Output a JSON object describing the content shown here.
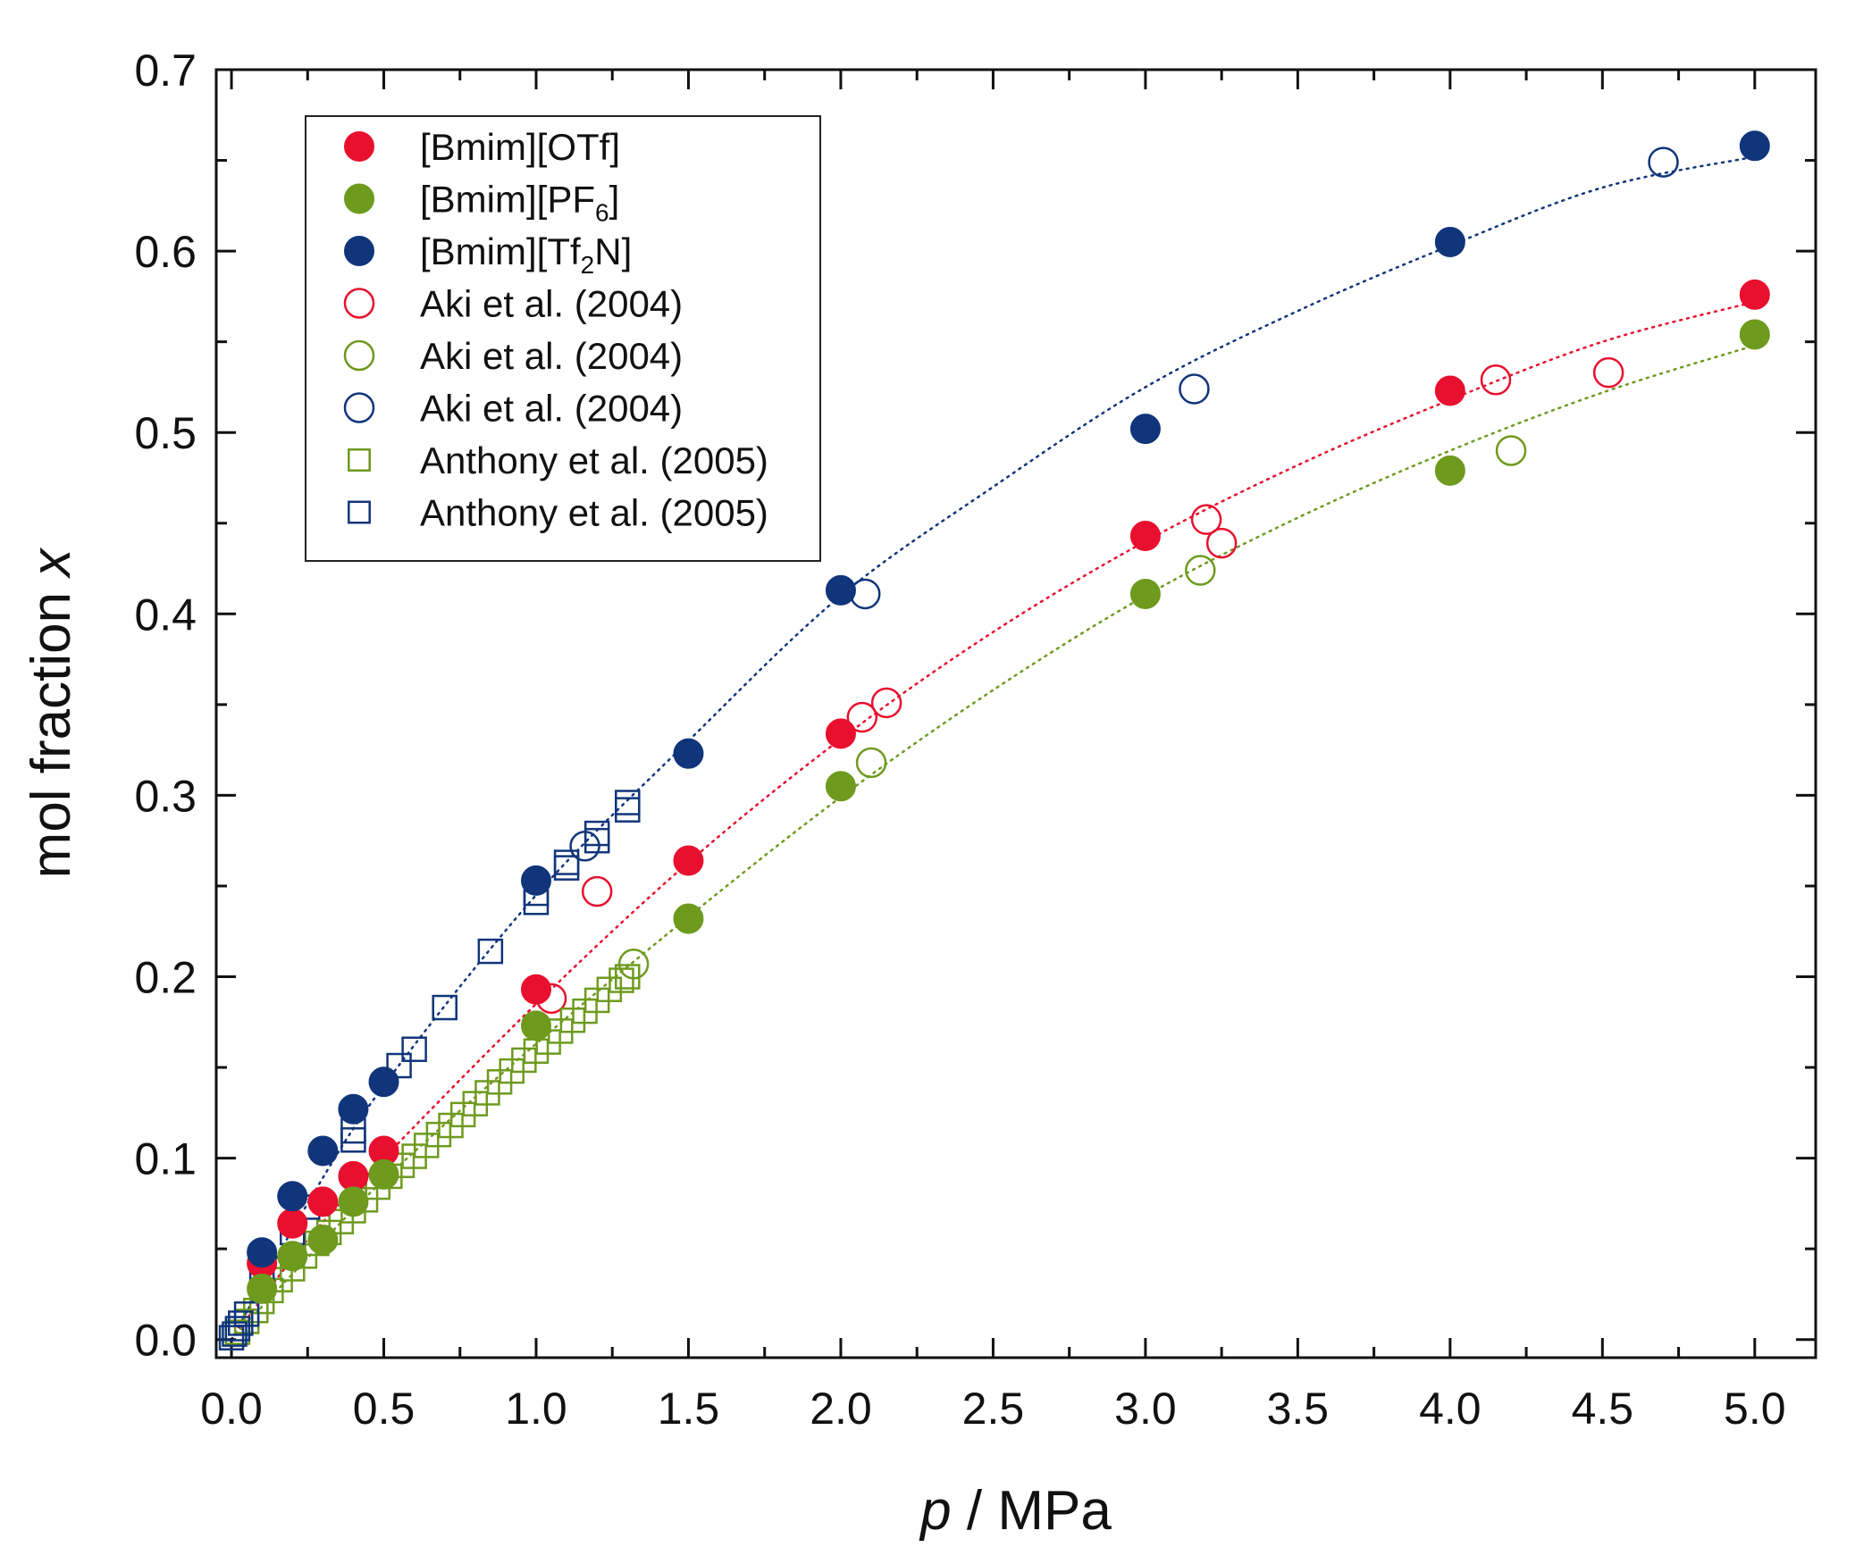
{
  "chart_data": {
    "type": "scatter",
    "title": "",
    "xlabel": "p / MPa",
    "xlabel_var": "p",
    "xlabel_unit": " / MPa",
    "ylabel": "mol fraction x",
    "ylabel_text": "mol fraction ",
    "ylabel_var": "x",
    "xlim": [
      -0.05,
      5.2
    ],
    "ylim": [
      -0.01,
      0.7
    ],
    "x_ticks": [
      0.0,
      0.5,
      1.0,
      1.5,
      2.0,
      2.5,
      3.0,
      3.5,
      4.0,
      4.5,
      5.0
    ],
    "x_tick_labels": [
      "0.0",
      "0.5",
      "1.0",
      "1.5",
      "2.0",
      "2.5",
      "3.0",
      "3.5",
      "4.0",
      "4.5",
      "5.0"
    ],
    "y_ticks": [
      0.0,
      0.1,
      0.2,
      0.3,
      0.4,
      0.5,
      0.6,
      0.7
    ],
    "y_tick_labels": [
      "0.0",
      "0.1",
      "0.2",
      "0.3",
      "0.4",
      "0.5",
      "0.6",
      "0.7"
    ],
    "grid": false,
    "legend_position": "top-left",
    "series": [
      {
        "id": "bmim-otf",
        "name": "[Bmim][OTf]",
        "name_parts": [
          [
            "[Bmim][OTf]",
            ""
          ]
        ],
        "marker": "filled-circle",
        "color": "#e8102e",
        "x": [
          0.1,
          0.2,
          0.3,
          0.4,
          0.5,
          1.0,
          1.5,
          2.0,
          3.0,
          4.0,
          5.0
        ],
        "y": [
          0.042,
          0.064,
          0.076,
          0.09,
          0.104,
          0.193,
          0.264,
          0.334,
          0.443,
          0.523,
          0.576
        ]
      },
      {
        "id": "bmim-pf6",
        "name": "[Bmim][PF6]",
        "name_parts": [
          [
            "[Bmim][PF",
            ""
          ],
          [
            "6",
            "sub"
          ],
          [
            "]",
            ""
          ]
        ],
        "marker": "filled-circle",
        "color": "#6e9a1e",
        "x": [
          0.1,
          0.2,
          0.3,
          0.4,
          0.5,
          1.0,
          1.5,
          2.0,
          3.0,
          4.0,
          5.0
        ],
        "y": [
          0.028,
          0.046,
          0.055,
          0.076,
          0.091,
          0.173,
          0.232,
          0.305,
          0.411,
          0.479,
          0.554
        ]
      },
      {
        "id": "bmim-tf2n",
        "name": "[Bmim][Tf2N]",
        "name_parts": [
          [
            "[Bmim][Tf",
            ""
          ],
          [
            "2",
            "sub"
          ],
          [
            "N]",
            ""
          ]
        ],
        "marker": "filled-circle",
        "color": "#10357a",
        "x": [
          0.1,
          0.2,
          0.3,
          0.4,
          0.5,
          1.0,
          1.5,
          2.0,
          3.0,
          4.0,
          5.0
        ],
        "y": [
          0.048,
          0.079,
          0.104,
          0.127,
          0.142,
          0.253,
          0.323,
          0.413,
          0.502,
          0.605,
          0.658
        ]
      },
      {
        "id": "aki-otf",
        "name": "Aki et al. (2004)",
        "name_parts": [
          [
            "Aki et al. (2004)",
            ""
          ]
        ],
        "marker": "open-circle",
        "color": "#e8102e",
        "x": [
          1.05,
          1.2,
          2.07,
          2.15,
          3.2,
          3.25,
          4.15,
          4.52
        ],
        "y": [
          0.188,
          0.247,
          0.343,
          0.351,
          0.452,
          0.439,
          0.529,
          0.533
        ]
      },
      {
        "id": "aki-pf6",
        "name": "Aki et al. (2004)",
        "name_parts": [
          [
            "Aki et al. (2004)",
            ""
          ]
        ],
        "marker": "open-circle",
        "color": "#6e9a1e",
        "x": [
          1.32,
          2.1,
          3.18,
          4.2
        ],
        "y": [
          0.207,
          0.318,
          0.424,
          0.49
        ]
      },
      {
        "id": "aki-tf2n",
        "name": "Aki et al. (2004)",
        "name_parts": [
          [
            "Aki et al. (2004)",
            ""
          ]
        ],
        "marker": "open-circle",
        "color": "#10357a",
        "x": [
          1.16,
          2.08,
          3.16,
          4.7
        ],
        "y": [
          0.272,
          0.411,
          0.524,
          0.649
        ]
      },
      {
        "id": "anthony-pf6",
        "name": "Anthony et al. (2005)",
        "name_parts": [
          [
            "Anthony et al. (2005)",
            ""
          ]
        ],
        "marker": "open-square",
        "color": "#6e9a1e",
        "x": [
          0.02,
          0.05,
          0.08,
          0.1,
          0.13,
          0.16,
          0.2,
          0.24,
          0.28,
          0.32,
          0.36,
          0.4,
          0.44,
          0.48,
          0.52,
          0.56,
          0.6,
          0.64,
          0.68,
          0.72,
          0.76,
          0.8,
          0.84,
          0.88,
          0.92,
          0.96,
          1.0,
          1.04,
          1.08,
          1.12,
          1.16,
          1.2,
          1.24,
          1.28,
          1.3
        ],
        "y": [
          0.004,
          0.01,
          0.016,
          0.021,
          0.027,
          0.033,
          0.039,
          0.046,
          0.053,
          0.059,
          0.065,
          0.071,
          0.077,
          0.084,
          0.09,
          0.096,
          0.101,
          0.107,
          0.113,
          0.118,
          0.124,
          0.13,
          0.136,
          0.142,
          0.148,
          0.154,
          0.159,
          0.164,
          0.17,
          0.176,
          0.181,
          0.187,
          0.193,
          0.198,
          0.2
        ]
      },
      {
        "id": "anthony-tf2n",
        "name": "Anthony et al. (2005)",
        "name_parts": [
          [
            "Anthony et al. (2005)",
            ""
          ]
        ],
        "marker": "open-square",
        "color": "#10357a",
        "x": [
          0.0,
          0.01,
          0.02,
          0.03,
          0.05,
          0.1,
          0.2,
          0.25,
          0.4,
          0.4,
          0.55,
          0.6,
          0.7,
          0.85,
          1.0,
          1.0,
          1.1,
          1.1,
          1.2,
          1.2,
          1.3,
          1.3
        ],
        "y": [
          0.001,
          0.003,
          0.006,
          0.009,
          0.014,
          0.032,
          0.059,
          0.073,
          0.11,
          0.115,
          0.151,
          0.16,
          0.183,
          0.214,
          0.241,
          0.246,
          0.26,
          0.263,
          0.275,
          0.279,
          0.292,
          0.296
        ]
      }
    ],
    "fit_curves": [
      {
        "id": "fit-otf",
        "color": "#e8102e",
        "style": "dotted",
        "x": [
          0,
          0.25,
          0.5,
          1,
          1.5,
          2,
          2.5,
          3,
          3.5,
          4,
          4.5,
          5
        ],
        "y": [
          0,
          0.055,
          0.1,
          0.185,
          0.263,
          0.331,
          0.39,
          0.44,
          0.482,
          0.518,
          0.55,
          0.572
        ]
      },
      {
        "id": "fit-pf6",
        "color": "#6e9a1e",
        "style": "dotted",
        "x": [
          0,
          0.25,
          0.5,
          1,
          1.5,
          2,
          2.5,
          3,
          3.5,
          4,
          4.5,
          5
        ],
        "y": [
          0,
          0.045,
          0.088,
          0.163,
          0.233,
          0.299,
          0.358,
          0.41,
          0.453,
          0.49,
          0.522,
          0.548
        ]
      },
      {
        "id": "fit-tf2n",
        "color": "#10357a",
        "style": "dotted",
        "x": [
          0,
          0.25,
          0.5,
          1,
          1.5,
          2,
          2.5,
          3,
          3.5,
          4,
          4.5,
          5
        ],
        "y": [
          0,
          0.075,
          0.14,
          0.245,
          0.33,
          0.41,
          0.47,
          0.525,
          0.567,
          0.603,
          0.635,
          0.652
        ]
      }
    ]
  }
}
